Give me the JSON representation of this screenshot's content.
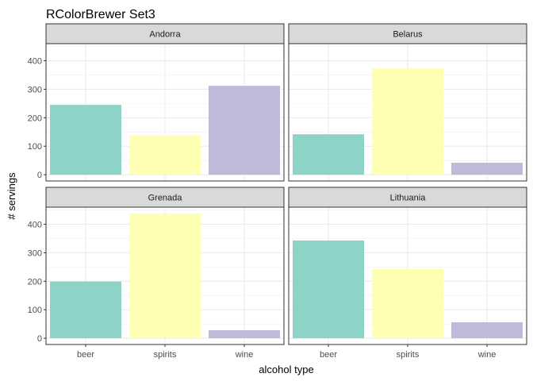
{
  "chart_data": {
    "type": "bar",
    "title": "RColorBrewer Set3",
    "xlabel": "alcohol type",
    "ylabel": "# servings",
    "categories": [
      "beer",
      "spirits",
      "wine"
    ],
    "colors": {
      "beer": "#8DD3C7",
      "spirits": "#FFFFB3",
      "wine": "#BEBADA"
    },
    "ylim": [
      0,
      450
    ],
    "yticks": [
      0,
      100,
      200,
      300,
      400
    ],
    "grid": true,
    "legend": "none",
    "facets": [
      {
        "name": "Andorra",
        "values": [
          245,
          138,
          312
        ]
      },
      {
        "name": "Belarus",
        "values": [
          142,
          373,
          42
        ]
      },
      {
        "name": "Grenada",
        "values": [
          199,
          438,
          28
        ]
      },
      {
        "name": "Lithuania",
        "values": [
          343,
          244,
          56
        ]
      }
    ]
  }
}
